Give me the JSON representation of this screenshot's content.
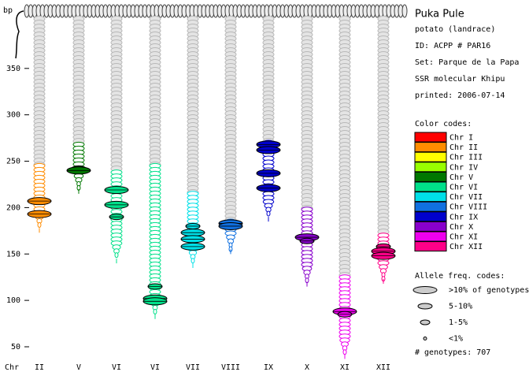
{
  "chart_data": {
    "type": "khipu",
    "y_label": "bp",
    "x_label": "Chr",
    "ylim": [
      33,
      411
    ],
    "yticks": [
      50,
      100,
      150,
      200,
      250,
      300,
      350
    ],
    "cords": [
      {
        "label": "II",
        "color": "#ff8c00",
        "range": [
          178,
          245
        ],
        "alleles": [
          {
            "bp": 207,
            "freq": ">10% of genotypes"
          },
          {
            "bp": 193,
            "freq": ">10% of genotypes"
          }
        ]
      },
      {
        "label": "V",
        "color": "#007700",
        "range": [
          220,
          268
        ],
        "alleles": [
          {
            "bp": 242,
            "freq": "5-10%"
          },
          {
            "bp": 240,
            "freq": ">10% of genotypes"
          }
        ]
      },
      {
        "label": "VI",
        "color": "#00e08a",
        "range": [
          145,
          238
        ],
        "alleles": [
          {
            "bp": 219,
            "freq": ">10% of genotypes"
          },
          {
            "bp": 203,
            "freq": ">10% of genotypes"
          },
          {
            "bp": 190,
            "freq": "5-10%"
          }
        ]
      },
      {
        "label": "VI",
        "color": "#00e08a",
        "range": [
          85,
          245
        ],
        "alleles": [
          {
            "bp": 115,
            "freq": "5-10%"
          },
          {
            "bp": 102,
            "freq": ">10% of genotypes"
          },
          {
            "bp": 99,
            "freq": ">10% of genotypes"
          }
        ]
      },
      {
        "label": "VII",
        "color": "#00e0e8",
        "range": [
          140,
          215
        ],
        "alleles": [
          {
            "bp": 180,
            "freq": "5-10%"
          },
          {
            "bp": 173,
            "freq": ">10% of genotypes"
          },
          {
            "bp": 166,
            "freq": ">10% of genotypes"
          },
          {
            "bp": 158,
            "freq": ">10% of genotypes"
          }
        ]
      },
      {
        "label": "VIII",
        "color": "#1070e0",
        "range": [
          155,
          185
        ],
        "alleles": [
          {
            "bp": 183,
            "freq": ">10% of genotypes"
          },
          {
            "bp": 180,
            "freq": ">10% of genotypes"
          }
        ]
      },
      {
        "label": "IX",
        "color": "#0000cc",
        "range": [
          190,
          270
        ],
        "alleles": [
          {
            "bp": 268,
            "freq": ">10% of genotypes"
          },
          {
            "bp": 262,
            "freq": ">10% of genotypes"
          },
          {
            "bp": 237,
            "freq": ">10% of genotypes"
          },
          {
            "bp": 221,
            "freq": ">10% of genotypes"
          }
        ]
      },
      {
        "label": "X",
        "color": "#8800cc",
        "range": [
          120,
          198
        ],
        "alleles": [
          {
            "bp": 168,
            "freq": ">10% of genotypes"
          },
          {
            "bp": 164,
            "freq": "5-10%"
          }
        ]
      },
      {
        "label": "XI",
        "color": "#ee00ee",
        "range": [
          42,
          125
        ],
        "alleles": [
          {
            "bp": 88,
            "freq": ">10% of genotypes"
          },
          {
            "bp": 85,
            "freq": "5-10%"
          }
        ]
      },
      {
        "label": "XII",
        "color": "#ff0088",
        "range": [
          123,
          170
        ],
        "alleles": [
          {
            "bp": 158,
            "freq": "5-10%"
          },
          {
            "bp": 153,
            "freq": ">10% of genotypes"
          },
          {
            "bp": 148,
            "freq": ">10% of genotypes"
          }
        ]
      }
    ]
  },
  "info": {
    "name": "Puka Pule",
    "kind": "potato (landrace)",
    "id": "ID: ACPP # PAR16",
    "set": "Set: Parque de la Papa",
    "method": "SSR molecular Khipu",
    "printed": "printed: 2006-07-14"
  },
  "color_codes": {
    "title": "Color codes:",
    "items": [
      {
        "label": "Chr I",
        "color": "#ff0000"
      },
      {
        "label": "Chr II",
        "color": "#ff8c00"
      },
      {
        "label": "Chr III",
        "color": "#ffff00"
      },
      {
        "label": "Chr IV",
        "color": "#99ff00"
      },
      {
        "label": "Chr V",
        "color": "#007700"
      },
      {
        "label": "Chr VI",
        "color": "#00e08a"
      },
      {
        "label": "Chr VII",
        "color": "#00e0e8"
      },
      {
        "label": "Chr VIII",
        "color": "#1070e0"
      },
      {
        "label": "Chr IX",
        "color": "#0000cc"
      },
      {
        "label": "Chr X",
        "color": "#8800cc"
      },
      {
        "label": "Chr XI",
        "color": "#ee00ee"
      },
      {
        "label": "Chr XII",
        "color": "#ff0088"
      }
    ]
  },
  "allele_freq_codes": {
    "title": "Allele freq. codes:",
    "items": [
      ">10% of genotypes",
      "5-10%",
      "1-5%",
      "<1%"
    ]
  },
  "genotypes": "# genotypes: 707"
}
